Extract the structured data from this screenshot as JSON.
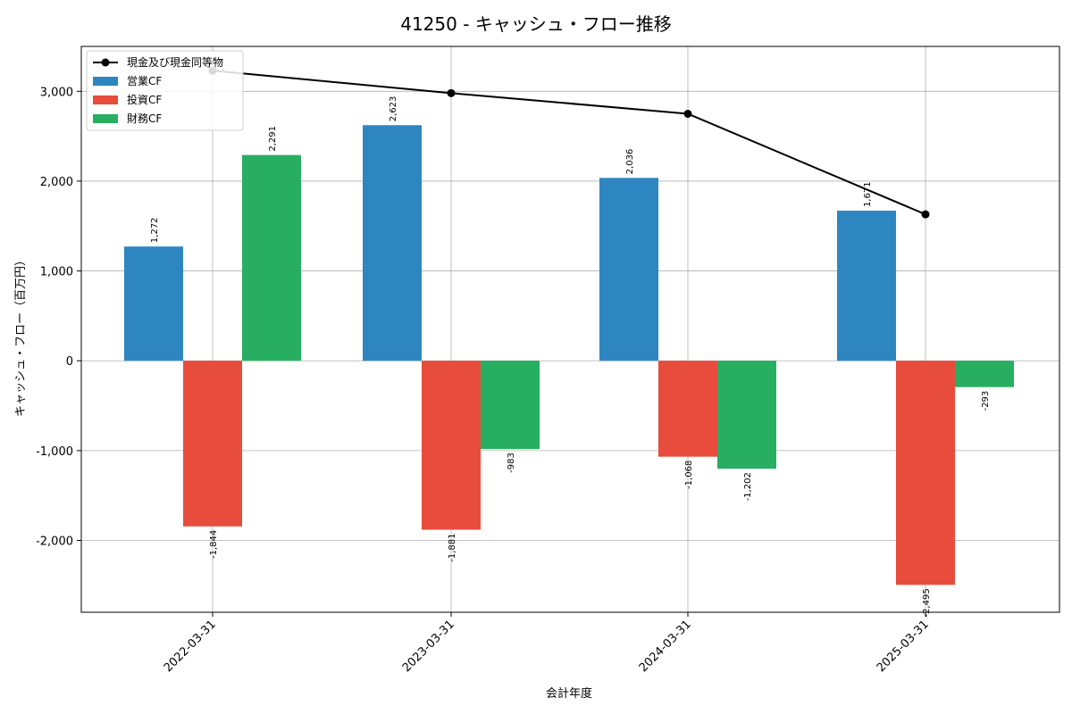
{
  "chart_data": {
    "type": "bar",
    "title": "41250 - キャッシュ・フロー推移",
    "xlabel": "会計年度",
    "ylabel": "キャッシュ・フロー（百万円）",
    "categories": [
      "2022-03-31",
      "2023-03-31",
      "2024-03-31",
      "2025-03-31"
    ],
    "ylim": [
      -2800,
      3500
    ],
    "yticks": [
      -2000,
      -1000,
      0,
      1000,
      2000,
      3000
    ],
    "ytick_labels": [
      "-2,000",
      "-1,000",
      "0",
      "1,000",
      "2,000",
      "3,000"
    ],
    "grid": true,
    "legend_position": "top-left",
    "series": [
      {
        "name": "営業CF",
        "kind": "bar",
        "color": "#2e86c1",
        "values": [
          1272,
          2623,
          2036,
          1671
        ],
        "labels": [
          "1,272",
          "2,623",
          "2,036",
          "1,671"
        ]
      },
      {
        "name": "投資CF",
        "kind": "bar",
        "color": "#e74c3c",
        "values": [
          -1844,
          -1881,
          -1068,
          -2495
        ],
        "labels": [
          "-1,844",
          "-1,881",
          "-1,068",
          "-2,495"
        ]
      },
      {
        "name": "財務CF",
        "kind": "bar",
        "color": "#27ae60",
        "values": [
          2291,
          -983,
          -1202,
          -293
        ],
        "labels": [
          "2,291",
          "-983",
          "-1,202",
          "-293"
        ]
      },
      {
        "name": "現金及び現金同等物",
        "kind": "line",
        "color": "#000000",
        "values": [
          3230,
          2980,
          2750,
          1630
        ]
      }
    ]
  }
}
